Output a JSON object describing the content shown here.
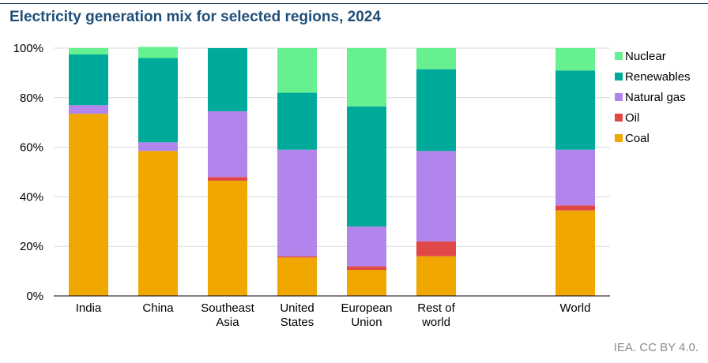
{
  "title": "Electricity generation mix for selected regions, 2024",
  "source": "IEA. CC BY 4.0.",
  "chart_data": {
    "type": "bar",
    "stacked": true,
    "title": "Electricity generation mix for selected regions, 2024",
    "xlabel": "",
    "ylabel": "",
    "ylim": [
      0,
      100
    ],
    "yticks": [
      "0%",
      "20%",
      "40%",
      "60%",
      "80%",
      "100%"
    ],
    "grid": true,
    "legend_position": "right",
    "categories": [
      [
        "India"
      ],
      [
        "China"
      ],
      [
        "Southeast",
        "Asia"
      ],
      [
        "United",
        "States"
      ],
      [
        "European",
        "Union"
      ],
      [
        "Rest of",
        "world"
      ],
      [],
      [
        "World"
      ]
    ],
    "series": [
      {
        "name": "Coal",
        "color": "#f0a800",
        "values": [
          73.5,
          58.5,
          46.5,
          15.5,
          10.5,
          16,
          null,
          34.5
        ]
      },
      {
        "name": "Oil",
        "color": "#e04848",
        "values": [
          0,
          0,
          1.5,
          0.5,
          1.5,
          6,
          null,
          2
        ]
      },
      {
        "name": "Natural gas",
        "color": "#b185ec",
        "values": [
          3.5,
          3.5,
          26.5,
          43,
          16,
          36.5,
          null,
          22.5
        ]
      },
      {
        "name": "Renewables",
        "color": "#00aa9a",
        "values": [
          20.5,
          34,
          25.5,
          23,
          48.5,
          33,
          null,
          32
        ]
      },
      {
        "name": "Nuclear",
        "color": "#66f08f",
        "values": [
          2.5,
          4.5,
          0,
          18,
          23.5,
          8.5,
          null,
          9
        ]
      }
    ],
    "legend_order": [
      "Nuclear",
      "Renewables",
      "Natural gas",
      "Oil",
      "Coal"
    ]
  }
}
